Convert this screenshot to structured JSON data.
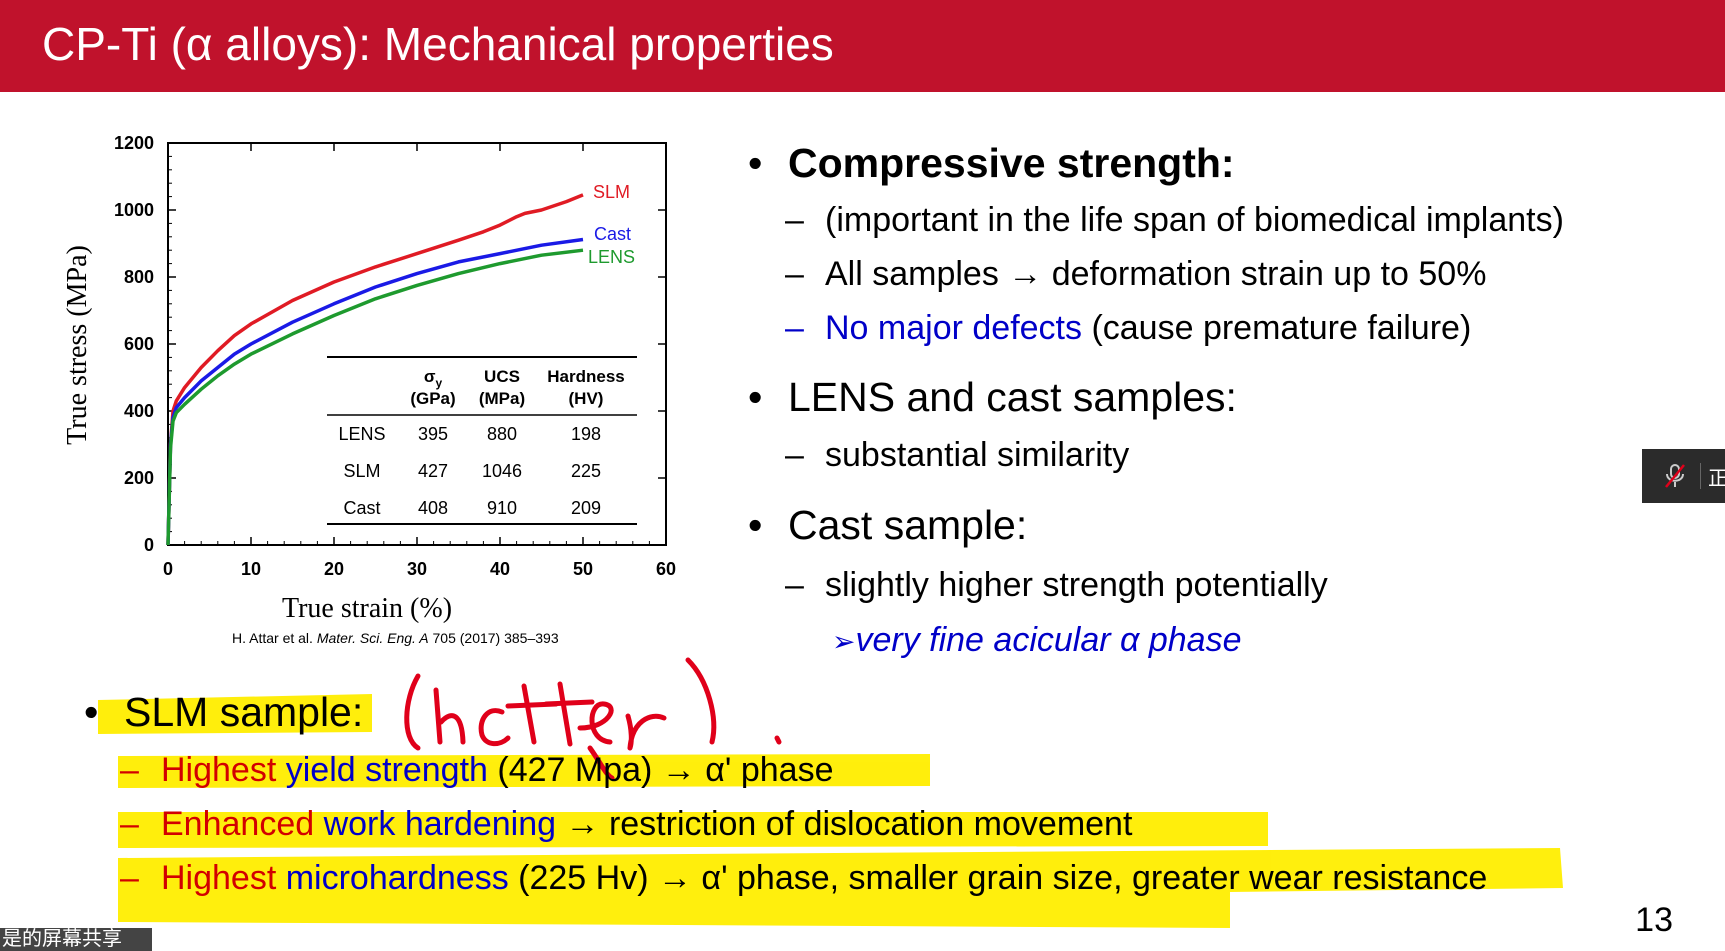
{
  "slide": {
    "title": "CP-Ti (α alloys): Mechanical properties",
    "page_number": "13",
    "citation": {
      "authors": "H. Attar et al. ",
      "journal": "Mater. Sci. Eng. A",
      "rest": " 705 (2017) 385–393"
    },
    "right": {
      "b1": "Compressive strength:",
      "b1_s1": "(important in the life span of biomedical implants)",
      "b1_s2": "All samples → deformation strain up to 50%",
      "b1_s3_blue": "No major defects",
      "b1_s3_rest": " (cause premature failure)",
      "b2": "LENS and cast samples:",
      "b2_s1": "substantial similarity",
      "b3": "Cast sample:",
      "b3_s1": "slightly higher strength potentially",
      "b3_s1_sub": "very fine acicular α phase",
      "b3_s1_sub_marker": "➢"
    },
    "bottom": {
      "b": "SLM sample",
      "colon": ":",
      "l1_red": "Highest",
      "l1_blue": " yield strength",
      "l1_rest": " (427 Mpa) → α' phase",
      "l2_red": "Enhanced",
      "l2_blue": " work hardening",
      "l2_rest": " → restriction of dislocation movement",
      "l3_red": "Highest",
      "l3_blue": " microhardness",
      "l3_rest": " (225 Hv) → α' phase, smaller grain size, greater wear resistance"
    }
  },
  "annotation": {
    "handwriting": "(better)"
  },
  "overlay": {
    "share_text": "是的屏幕共享",
    "widget_glyph": "正"
  },
  "colors": {
    "title_bg": "#c0122c",
    "slm": "#e01b24",
    "cast": "#1a1ae6",
    "lens": "#1e9a2e",
    "highlight": "#ffee00",
    "ink": "#e0001a"
  },
  "chart_data": {
    "type": "line",
    "xlabel": "True strain (%)",
    "ylabel": "True stress (MPa)",
    "xlim": [
      0,
      60
    ],
    "ylim": [
      0,
      1200
    ],
    "x_ticks": [
      "0",
      "10",
      "20",
      "30",
      "40",
      "50",
      "60"
    ],
    "y_ticks": [
      "0",
      "200",
      "400",
      "600",
      "800",
      "1000",
      "1200"
    ],
    "series": [
      {
        "name": "SLM",
        "color": "#e01b24",
        "points": [
          [
            0,
            0
          ],
          [
            0.3,
            300
          ],
          [
            0.6,
            400
          ],
          [
            1,
            430
          ],
          [
            2,
            470
          ],
          [
            4,
            530
          ],
          [
            6,
            580
          ],
          [
            8,
            625
          ],
          [
            10,
            660
          ],
          [
            15,
            730
          ],
          [
            20,
            785
          ],
          [
            25,
            830
          ],
          [
            30,
            870
          ],
          [
            35,
            910
          ],
          [
            38,
            935
          ],
          [
            40,
            955
          ],
          [
            42,
            980
          ],
          [
            43,
            990
          ],
          [
            45,
            1000
          ],
          [
            48,
            1025
          ],
          [
            50,
            1045
          ]
        ]
      },
      {
        "name": "Cast",
        "color": "#1a1ae6",
        "points": [
          [
            0,
            0
          ],
          [
            0.3,
            300
          ],
          [
            0.6,
            380
          ],
          [
            1,
            410
          ],
          [
            2,
            440
          ],
          [
            4,
            490
          ],
          [
            6,
            530
          ],
          [
            8,
            570
          ],
          [
            10,
            600
          ],
          [
            15,
            665
          ],
          [
            20,
            720
          ],
          [
            25,
            770
          ],
          [
            30,
            810
          ],
          [
            35,
            845
          ],
          [
            40,
            870
          ],
          [
            45,
            895
          ],
          [
            50,
            912
          ]
        ]
      },
      {
        "name": "LENS",
        "color": "#1e9a2e",
        "points": [
          [
            0,
            0
          ],
          [
            0.3,
            290
          ],
          [
            0.6,
            370
          ],
          [
            1,
            395
          ],
          [
            2,
            420
          ],
          [
            4,
            465
          ],
          [
            6,
            505
          ],
          [
            8,
            540
          ],
          [
            10,
            570
          ],
          [
            15,
            630
          ],
          [
            20,
            685
          ],
          [
            25,
            735
          ],
          [
            30,
            775
          ],
          [
            35,
            810
          ],
          [
            40,
            840
          ],
          [
            45,
            865
          ],
          [
            50,
            880
          ]
        ]
      }
    ],
    "table": {
      "headers": [
        [
          "",
          ""
        ],
        [
          "σy",
          "(GPa)"
        ],
        [
          "UCS",
          "(MPa)"
        ],
        [
          "Hardness",
          "(HV)"
        ]
      ],
      "rows": [
        [
          "LENS",
          "395",
          "880",
          "198"
        ],
        [
          "SLM",
          "427",
          "1046",
          "225"
        ],
        [
          "Cast",
          "408",
          "910",
          "209"
        ]
      ]
    }
  }
}
